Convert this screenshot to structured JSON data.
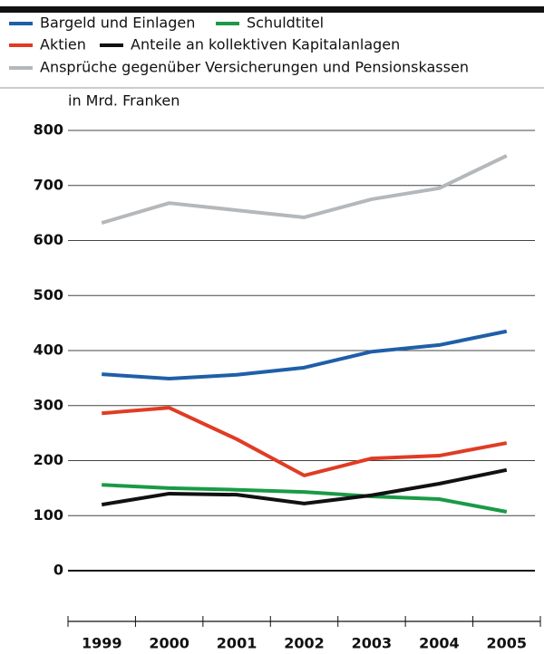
{
  "chart_data": {
    "type": "line",
    "y_axis_label": "in Mrd. Franken",
    "categories": [
      "1999",
      "2000",
      "2001",
      "2002",
      "2003",
      "2004",
      "2005"
    ],
    "series": [
      {
        "name": "Bargeld und Einlagen",
        "color": "#1f5fa8",
        "values": [
          357,
          349,
          356,
          369,
          398,
          410,
          435
        ]
      },
      {
        "name": "Schuldtitel",
        "color": "#1a9a46",
        "values": [
          156,
          150,
          147,
          143,
          135,
          130,
          107
        ]
      },
      {
        "name": "Aktien",
        "color": "#e03c24",
        "values": [
          286,
          296,
          239,
          173,
          204,
          209,
          232
        ]
      },
      {
        "name": "Anteile an kollektiven Kapitalanlagen",
        "color": "#111111",
        "values": [
          120,
          140,
          138,
          122,
          137,
          158,
          183
        ]
      },
      {
        "name": "Ansprüche gegenüber Versicherungen und Pensionskassen",
        "color": "#b4b8bb",
        "values": [
          632,
          668,
          655,
          642,
          675,
          695,
          754
        ]
      }
    ],
    "ylim": [
      0,
      800
    ],
    "yticks": [
      0,
      100,
      200,
      300,
      400,
      500,
      600,
      700,
      800
    ],
    "grid": true
  }
}
